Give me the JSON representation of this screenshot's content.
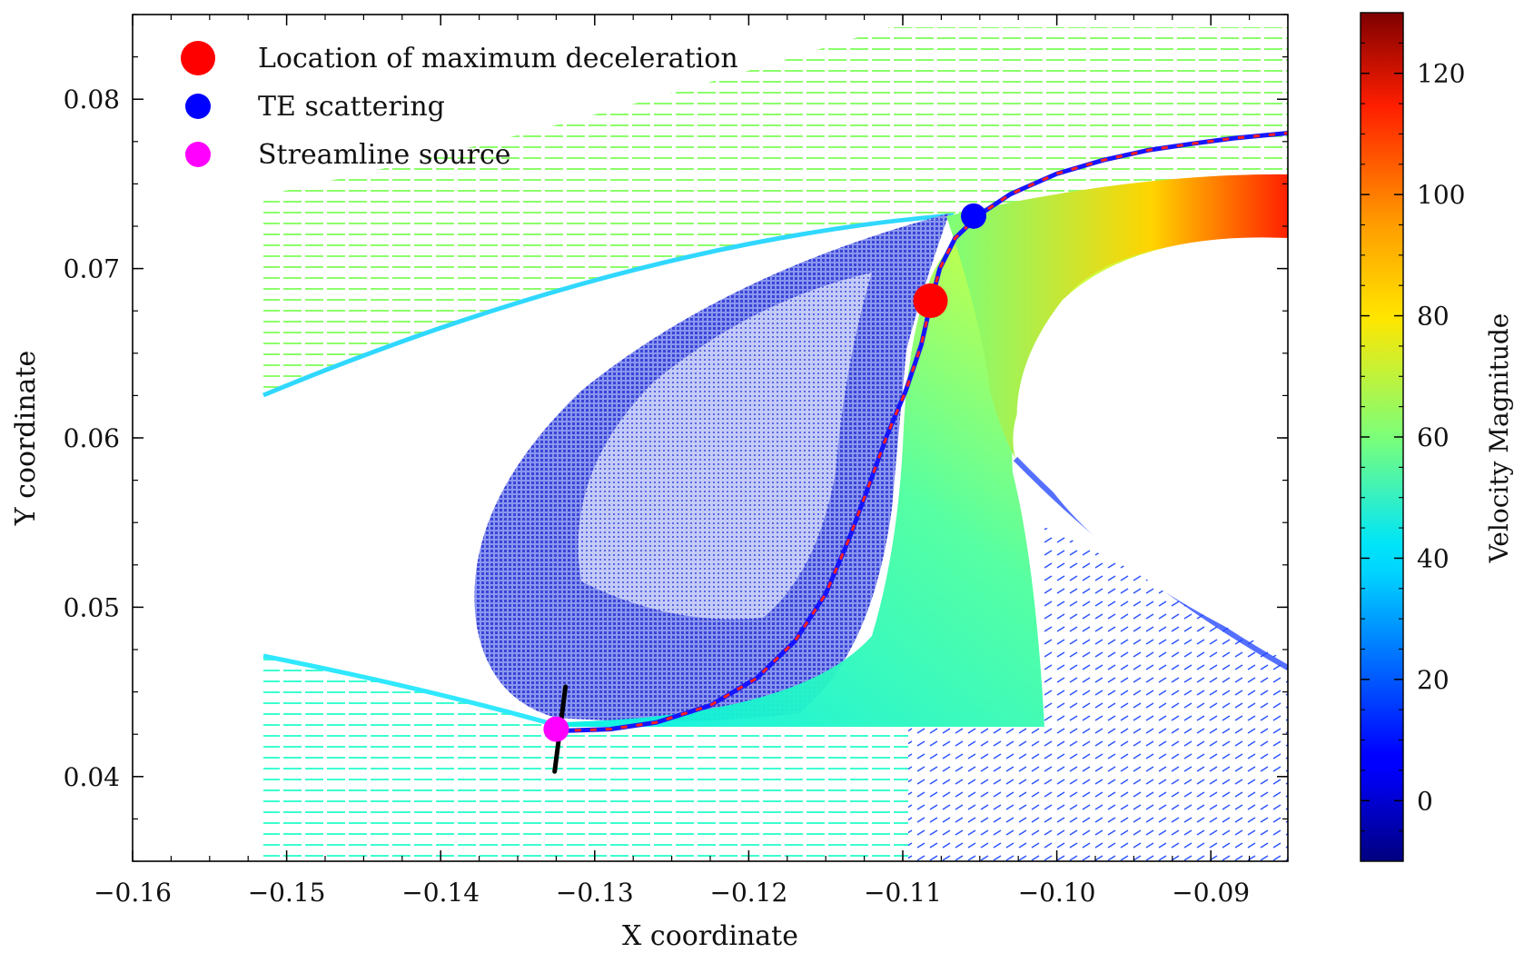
{
  "chart_data": {
    "type": "quiver",
    "xlabel": "X coordinate",
    "ylabel": "Y coordinate",
    "xlim": [
      -0.16,
      -0.085
    ],
    "ylim": [
      0.035,
      0.085
    ],
    "x_ticks": [
      -0.16,
      -0.15,
      -0.14,
      -0.13,
      -0.12,
      -0.11,
      -0.1,
      -0.09
    ],
    "x_tick_labels": [
      "−0.16",
      "−0.15",
      "−0.14",
      "−0.13",
      "−0.12",
      "−0.11",
      "−0.10",
      "−0.09"
    ],
    "y_ticks": [
      0.04,
      0.05,
      0.06,
      0.07,
      0.08
    ],
    "y_tick_labels": [
      "0.04",
      "0.05",
      "0.06",
      "0.07",
      "0.08"
    ],
    "colorbar": {
      "label": "Velocity Magnitude",
      "range": [
        -10,
        130
      ],
      "ticks": [
        0,
        20,
        40,
        60,
        80,
        100,
        120
      ],
      "tick_labels": [
        "0",
        "20",
        "40",
        "60",
        "80",
        "100",
        "120"
      ],
      "colormap": "jet"
    },
    "legend": {
      "placement": "upper-left",
      "entries": [
        {
          "label": "Location of maximum deceleration",
          "color": "#ff0000"
        },
        {
          "label": "TE scattering",
          "color": "#0000ff"
        },
        {
          "label": "Streamline source",
          "color": "#ff00ff"
        }
      ]
    },
    "points": [
      {
        "name": "Location of maximum deceleration",
        "x": -0.1082,
        "y": 0.0681,
        "color": "#ff0000"
      },
      {
        "name": "TE scattering",
        "x": -0.1054,
        "y": 0.0731,
        "color": "#0000ff"
      },
      {
        "name": "Streamline source",
        "x": -0.1325,
        "y": 0.0428,
        "color": "#ff00ff"
      }
    ],
    "streamline": {
      "x": [
        -0.1323,
        -0.129,
        -0.126,
        -0.1225,
        -0.1195,
        -0.117,
        -0.115,
        -0.1135,
        -0.1122,
        -0.111,
        -0.1098,
        -0.1088,
        -0.1082,
        -0.1076,
        -0.1066,
        -0.105,
        -0.103,
        -0.1,
        -0.097,
        -0.094,
        -0.091,
        -0.0885,
        -0.085
      ],
      "y": [
        0.0427,
        0.0428,
        0.0432,
        0.0442,
        0.0458,
        0.048,
        0.0508,
        0.054,
        0.0572,
        0.0602,
        0.0628,
        0.0655,
        0.0679,
        0.07,
        0.0718,
        0.0732,
        0.0744,
        0.0756,
        0.0764,
        0.077,
        0.0774,
        0.0777,
        0.078
      ],
      "style": "blue line with red dashes"
    },
    "source_line": {
      "x": [
        -0.1319,
        -0.1326
      ],
      "y": [
        0.0453,
        0.0403
      ],
      "color": "#000000"
    }
  }
}
